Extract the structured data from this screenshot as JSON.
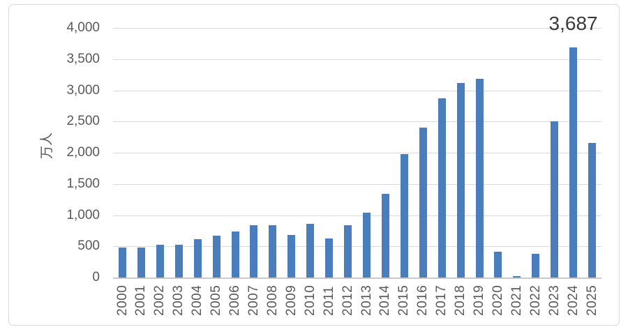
{
  "chart_data": {
    "type": "bar",
    "title": "",
    "ylabel": "万人",
    "xlabel": "",
    "categories": [
      "2000",
      "2001",
      "2002",
      "2003",
      "2004",
      "2005",
      "2006",
      "2007",
      "2008",
      "2009",
      "2010",
      "2011",
      "2012",
      "2013",
      "2014",
      "2015",
      "2016",
      "2017",
      "2018",
      "2019",
      "2020",
      "2021",
      "2022",
      "2023",
      "2024",
      "2025"
    ],
    "values": [
      476,
      477,
      524,
      521,
      614,
      673,
      733,
      835,
      835,
      679,
      861,
      622,
      836,
      1036,
      1341,
      1974,
      2404,
      2869,
      3119,
      3188,
      412,
      25,
      383,
      2507,
      3687,
      2152
    ],
    "ylim": [
      0,
      4000
    ],
    "ytick_values": [
      0,
      500,
      1000,
      1500,
      2000,
      2500,
      3000,
      3500,
      4000
    ],
    "ytick_labels": [
      "0",
      "500",
      "1,000",
      "1,500",
      "2,000",
      "2,500",
      "3,000",
      "3,500",
      "4,000"
    ],
    "grid": true,
    "legend": false,
    "xtick_rotation_deg": -90,
    "data_labels": [
      {
        "category": "2024",
        "text": "3,687"
      }
    ],
    "colors": {
      "bar": "#4A7DBC",
      "gridline": "#D9D9D9",
      "axis_line": "#C9C9C9",
      "tick_text": "#595959",
      "data_label_text": "#3B3B3B",
      "frame_border": "#D9D9D9",
      "background": "#FFFFFF"
    }
  }
}
